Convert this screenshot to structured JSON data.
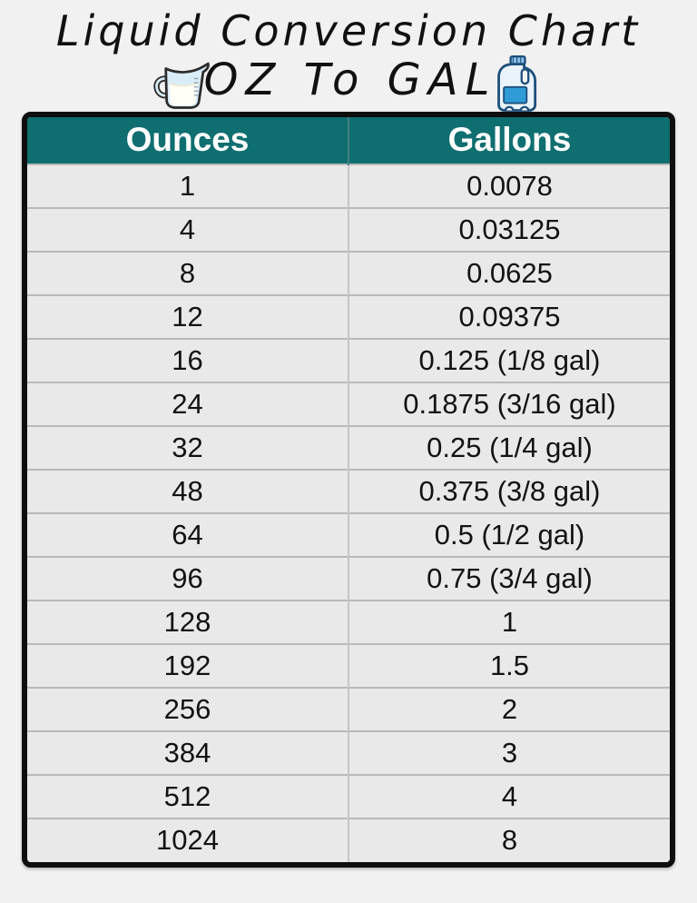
{
  "chart_data": {
    "type": "table",
    "title": "Liquid Conversion Chart",
    "subtitle": "OZ To GAL",
    "columns": [
      "Ounces",
      "Gallons"
    ],
    "rows": [
      [
        "1",
        "0.0078"
      ],
      [
        "4",
        "0.03125"
      ],
      [
        "8",
        "0.0625"
      ],
      [
        "12",
        "0.09375"
      ],
      [
        "16",
        "0.125 (1/8 gal)"
      ],
      [
        "24",
        "0.1875 (3/16 gal)"
      ],
      [
        "32",
        "0.25 (1/4 gal)"
      ],
      [
        "48",
        "0.375 (3/8 gal)"
      ],
      [
        "64",
        "0.5 (1/2 gal)"
      ],
      [
        "96",
        "0.75 (3/4 gal)"
      ],
      [
        "128",
        "1"
      ],
      [
        "192",
        "1.5"
      ],
      [
        "256",
        "2"
      ],
      [
        "384",
        "3"
      ],
      [
        "512",
        "4"
      ],
      [
        "1024",
        "8"
      ]
    ]
  },
  "icons": {
    "left": "measuring-cup-icon",
    "right": "gallon-jug-icon"
  },
  "colors": {
    "page_bg": "#f1f1f1",
    "header_bg": "#0f6e70",
    "header_text": "#ffffff",
    "row_bg": "#e9e9e9",
    "row_divider": "#b9b9b9",
    "table_border": "#0e0e0e",
    "title_text": "#111111",
    "jug_label_blue": "#2f9cd8"
  }
}
